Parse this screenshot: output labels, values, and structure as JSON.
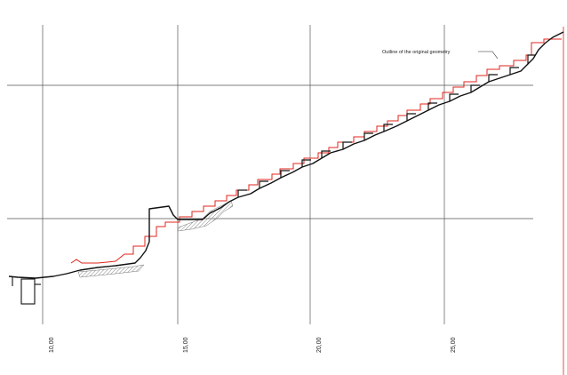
{
  "annotation": {
    "text": "Outline of the original geometry"
  },
  "axis_labels": [
    "10,00",
    "15,00",
    "20,00",
    "25,00"
  ],
  "colors": {
    "outline": "#111111",
    "reconstruction": "#e0241c",
    "grid": "#555555",
    "hatch": "#888888",
    "background": "#ffffff"
  }
}
